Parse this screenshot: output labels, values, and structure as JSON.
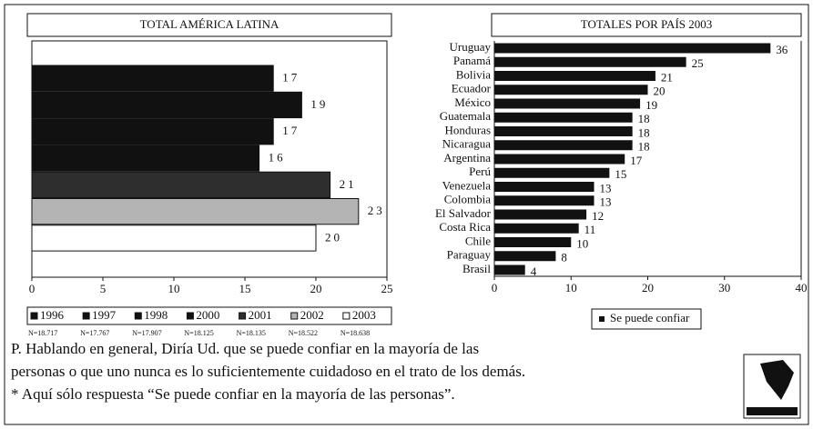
{
  "chart_data": [
    {
      "type": "bar",
      "orientation": "horizontal",
      "title": "TOTAL AMÉRICA LATINA",
      "categories": [
        "1996",
        "1997",
        "1998",
        "2000",
        "2001",
        "2002",
        "2003"
      ],
      "values": [
        17,
        19,
        17,
        16,
        21,
        23,
        20
      ],
      "colors": [
        "#111111",
        "#111111",
        "#111111",
        "#111111",
        "#2e2e2e",
        "#b4b4b4",
        "#ffffff"
      ],
      "n_labels": [
        "N=18.717",
        "N=17.767",
        "N=17.907",
        "N=18.125",
        "N=18.135",
        "N=18.522",
        "N=18.638"
      ],
      "xlim": [
        0,
        25
      ],
      "xticks": [
        0,
        5,
        10,
        15,
        20,
        25
      ],
      "legend": "bottom"
    },
    {
      "type": "bar",
      "orientation": "horizontal",
      "title": "TOTALES POR PAÍS 2003",
      "categories": [
        "Uruguay",
        "Panamá",
        "Bolivia",
        "Ecuador",
        "México",
        "Guatemala",
        "Honduras",
        "Nicaragua",
        "Argentina",
        "Perú",
        "Venezuela",
        "Colombia",
        "El Salvador",
        "Costa Rica",
        "Chile",
        "Paraguay",
        "Brasil"
      ],
      "series": [
        {
          "name": "Se puede confiar",
          "color": "#111111",
          "values": [
            36,
            25,
            21,
            20,
            19,
            18,
            18,
            18,
            17,
            15,
            13,
            13,
            12,
            11,
            10,
            8,
            4
          ]
        }
      ],
      "xlim": [
        0,
        40
      ],
      "xticks": [
        0,
        10,
        20,
        30,
        40
      ],
      "legend": "bottom"
    }
  ],
  "footnote": {
    "lines": [
      "P. Hablando en general, Diría Ud. que se puede confiar en la mayoría de las",
      "personas o que uno nunca es lo suficientemente cuidadoso en el trato de los demás.",
      "* Aquí sólo respuesta “Se puede confiar en la mayoría de las personas”."
    ]
  }
}
